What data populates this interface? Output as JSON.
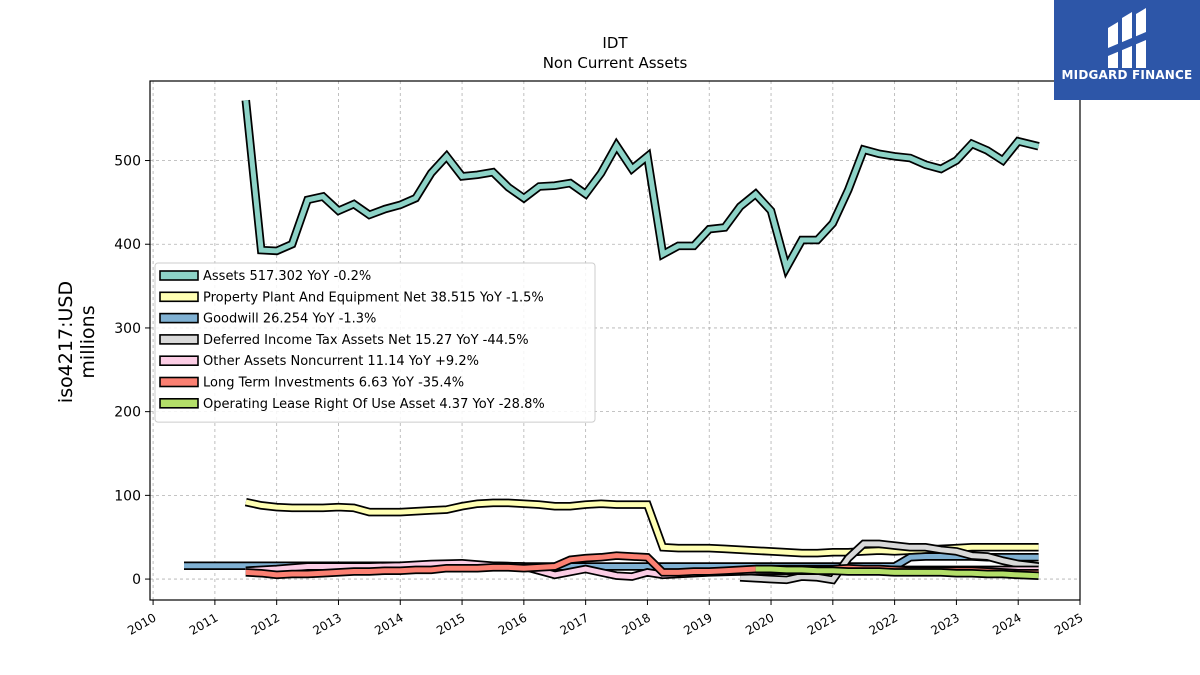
{
  "brand": {
    "name": "MIDGARD FINANCE"
  },
  "chart_data": {
    "type": "line",
    "title": "IDT",
    "subtitle": "Non Current  Assets",
    "ylabel_line1": "iso4217:USD",
    "ylabel_line2": "millions",
    "ylim": [
      -25,
      595
    ],
    "xlim": [
      2009.95,
      2025.0
    ],
    "yticks": [
      0,
      100,
      200,
      300,
      400,
      500
    ],
    "xticks": [
      2010,
      2011,
      2012,
      2013,
      2014,
      2015,
      2016,
      2017,
      2018,
      2019,
      2020,
      2021,
      2022,
      2023,
      2024,
      2025
    ],
    "grid": true,
    "legend_position": "center-left",
    "series": [
      {
        "name": "Assets",
        "legend": "Assets  517.302 YoY -0.2%",
        "color": "#8dd3c7",
        "x": [
          2011.5,
          2011.75,
          2012.0,
          2012.25,
          2012.5,
          2012.75,
          2013.0,
          2013.25,
          2013.5,
          2013.75,
          2014.0,
          2014.25,
          2014.5,
          2014.75,
          2015.0,
          2015.25,
          2015.5,
          2015.75,
          2016.0,
          2016.25,
          2016.5,
          2016.75,
          2017.0,
          2017.25,
          2017.5,
          2017.75,
          2018.0,
          2018.25,
          2018.5,
          2018.75,
          2019.0,
          2019.25,
          2019.5,
          2019.75,
          2020.0,
          2020.25,
          2020.5,
          2020.75,
          2021.0,
          2021.25,
          2021.5,
          2021.75,
          2022.0,
          2022.25,
          2022.5,
          2022.75,
          2023.0,
          2023.25,
          2023.5,
          2023.75,
          2024.0,
          2024.33
        ],
        "values": [
          572,
          393,
          392,
          400,
          453,
          457,
          440,
          448,
          435,
          442,
          447,
          455,
          485,
          505,
          481,
          483,
          486,
          468,
          455,
          469,
          470,
          473,
          460,
          485,
          518,
          490,
          505,
          388,
          398,
          398,
          418,
          420,
          445,
          460,
          440,
          372,
          405,
          405,
          425,
          465,
          513,
          508,
          505,
          503,
          495,
          490,
          500,
          520,
          512,
          500,
          523,
          517
        ]
      },
      {
        "name": "Property Plant And Equipment Net",
        "legend": "Property Plant And Equipment Net  38.515 YoY -1.5%",
        "color": "#ffffb3",
        "x": [
          2011.5,
          2011.75,
          2012.0,
          2012.25,
          2012.5,
          2012.75,
          2013.0,
          2013.25,
          2013.5,
          2013.75,
          2014.0,
          2014.25,
          2014.5,
          2014.75,
          2015.0,
          2015.25,
          2015.5,
          2015.75,
          2016.0,
          2016.25,
          2016.5,
          2016.75,
          2017.0,
          2017.25,
          2017.5,
          2017.75,
          2018.0,
          2018.25,
          2018.5,
          2018.75,
          2019.0,
          2019.25,
          2019.5,
          2019.75,
          2020.0,
          2020.25,
          2020.5,
          2020.75,
          2021.0,
          2021.25,
          2021.5,
          2021.75,
          2022.0,
          2022.25,
          2022.5,
          2022.75,
          2023.0,
          2023.25,
          2023.5,
          2023.75,
          2024.0,
          2024.33
        ],
        "values": [
          92,
          88,
          86,
          85,
          85,
          85,
          86,
          85,
          80,
          80,
          80,
          81,
          82,
          83,
          87,
          90,
          91,
          91,
          90,
          89,
          87,
          87,
          89,
          90,
          89,
          89,
          89,
          38,
          37,
          37,
          37,
          36,
          35,
          34,
          33,
          32,
          31,
          31,
          32,
          32,
          33,
          34,
          33,
          34,
          35,
          36,
          37,
          38,
          38,
          38,
          38,
          38
        ]
      },
      {
        "name": "Goodwill",
        "legend": "Goodwill  26.254 YoY -1.3%",
        "color": "#80b1d3",
        "x": [
          2010.5,
          2011.0,
          2011.5,
          2012.0,
          2012.5,
          2013.0,
          2013.5,
          2014.0,
          2014.5,
          2015.0,
          2015.5,
          2016.0,
          2016.5,
          2017.0,
          2017.5,
          2018.0,
          2018.5,
          2019.0,
          2019.5,
          2020.0,
          2020.5,
          2021.0,
          2021.5,
          2022.0,
          2022.25,
          2022.5,
          2022.75,
          2023.0,
          2023.25,
          2023.5,
          2023.75,
          2024.0,
          2024.33
        ],
        "values": [
          16,
          16,
          16,
          16,
          16,
          16,
          16,
          16,
          16,
          16,
          16,
          15,
          15,
          15,
          15,
          15,
          15,
          15,
          15,
          15,
          15,
          15,
          15,
          15,
          26,
          27,
          27,
          27,
          27,
          26,
          26,
          26,
          26
        ]
      },
      {
        "name": "Deferred Income Tax Assets Net",
        "legend": "Deferred Income Tax Assets Net  15.27 YoY -44.5%",
        "color": "#d9d9d9",
        "x": [
          2019.5,
          2019.75,
          2020.0,
          2020.25,
          2020.5,
          2020.75,
          2021.0,
          2021.25,
          2021.5,
          2021.75,
          2022.0,
          2022.25,
          2022.5,
          2022.75,
          2023.0,
          2023.25,
          2023.5,
          2023.75,
          2024.0,
          2024.33
        ],
        "values": [
          2,
          1,
          0,
          -1,
          3,
          2,
          -1,
          25,
          42,
          42,
          40,
          38,
          38,
          35,
          33,
          28,
          27,
          22,
          18,
          15
        ]
      },
      {
        "name": "Other Assets Noncurrent",
        "legend": "Other Assets Noncurrent  11.14 YoY +9.2%",
        "color": "#fccde5",
        "x": [
          2011.5,
          2012.0,
          2012.5,
          2013.0,
          2013.5,
          2014.0,
          2014.5,
          2015.0,
          2015.5,
          2016.0,
          2016.5,
          2017.0,
          2017.25,
          2017.5,
          2017.75,
          2018.0,
          2018.25,
          2018.5,
          2019.0,
          2019.5,
          2020.0,
          2020.5,
          2021.0,
          2021.5,
          2022.0,
          2022.5,
          2023.0,
          2023.5,
          2024.0,
          2024.33
        ],
        "values": [
          10,
          12,
          15,
          15,
          15,
          16,
          18,
          19,
          16,
          15,
          5,
          12,
          8,
          4,
          3,
          8,
          5,
          6,
          8,
          9,
          10,
          10,
          10,
          10,
          11,
          11,
          11,
          11,
          11,
          11
        ]
      },
      {
        "name": "Long Term Investments",
        "legend": "Long Term Investments  6.63 YoY -35.4%",
        "color": "#fb8072",
        "x": [
          2011.5,
          2011.75,
          2012.0,
          2012.25,
          2012.5,
          2012.75,
          2013.0,
          2013.25,
          2013.5,
          2013.75,
          2014.0,
          2014.25,
          2014.5,
          2014.75,
          2015.0,
          2015.25,
          2015.5,
          2015.75,
          2016.0,
          2016.25,
          2016.5,
          2016.75,
          2017.0,
          2017.25,
          2017.5,
          2017.75,
          2018.0,
          2018.25,
          2018.5,
          2018.75,
          2019.0,
          2019.25,
          2019.5,
          2019.75,
          2020.0,
          2020.25,
          2020.5,
          2020.75,
          2021.0,
          2021.25,
          2021.5,
          2021.75,
          2022.0,
          2022.25,
          2022.5,
          2022.75,
          2023.0,
          2023.25,
          2023.5,
          2023.75,
          2024.0,
          2024.33
        ],
        "values": [
          8,
          7,
          5,
          6,
          6,
          7,
          8,
          9,
          9,
          10,
          10,
          11,
          11,
          13,
          13,
          13,
          14,
          14,
          13,
          14,
          15,
          23,
          25,
          26,
          28,
          27,
          26,
          8,
          8,
          9,
          9,
          10,
          11,
          12,
          12,
          12,
          12,
          12,
          12,
          13,
          12,
          12,
          11,
          10,
          10,
          10,
          10,
          10,
          9,
          8,
          7,
          7
        ]
      },
      {
        "name": "Operating Lease Right Of Use Asset",
        "legend": "Operating Lease Right Of Use Asset  4.37 YoY -28.8%",
        "color": "#b3de69",
        "x": [
          2019.75,
          2020.0,
          2020.25,
          2020.5,
          2020.75,
          2021.0,
          2021.25,
          2021.5,
          2021.75,
          2022.0,
          2022.25,
          2022.5,
          2022.75,
          2023.0,
          2023.25,
          2023.5,
          2023.75,
          2024.0,
          2024.33
        ],
        "values": [
          12,
          12,
          11,
          11,
          10,
          10,
          9,
          9,
          9,
          8,
          8,
          8,
          8,
          7,
          7,
          6,
          6,
          5,
          4
        ]
      }
    ]
  }
}
